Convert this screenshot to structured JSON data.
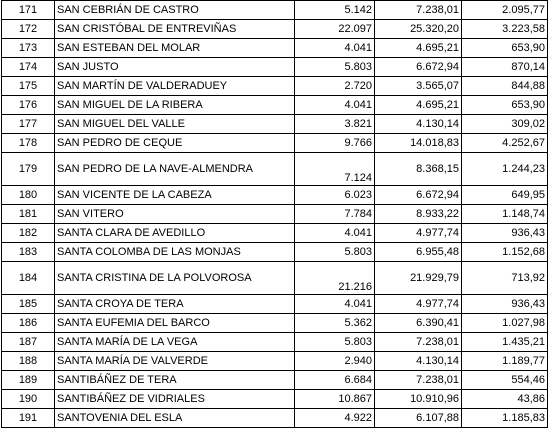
{
  "rows": [
    {
      "num": "171",
      "name": "SAN CEBRIÁN DE CASTRO",
      "c1": "5.142",
      "c2": "7.238,01",
      "c3": "2.095,77"
    },
    {
      "num": "172",
      "name": "SAN CRISTÓBAL DE ENTREVIÑAS",
      "c1": "22.097",
      "c2": "25.320,20",
      "c3": "3.223,58"
    },
    {
      "num": "173",
      "name": "SAN ESTEBAN DEL MOLAR",
      "c1": "4.041",
      "c2": "4.695,21",
      "c3": "653,90"
    },
    {
      "num": "174",
      "name": "SAN JUSTO",
      "c1": "5.803",
      "c2": "6.672,94",
      "c3": "870,14"
    },
    {
      "num": "175",
      "name": "SAN MARTÍN DE VALDERADUEY",
      "c1": "2.720",
      "c2": "3.565,07",
      "c3": "844,88"
    },
    {
      "num": "176",
      "name": "SAN MIGUEL DE LA RIBERA",
      "c1": "4.041",
      "c2": "4.695,21",
      "c3": "653,90"
    },
    {
      "num": "177",
      "name": "SAN MIGUEL DEL VALLE",
      "c1": "3.821",
      "c2": "4.130,14",
      "c3": "309,02"
    },
    {
      "num": "178",
      "name": "SAN PEDRO DE CEQUE",
      "c1": "9.766",
      "c2": "14.018,83",
      "c3": "4.252,67"
    },
    {
      "num": "179",
      "name": "SAN PEDRO DE LA NAVE-ALMENDRA",
      "c1": "7.124",
      "c2": "8.368,15",
      "c3": "1.244,23"
    },
    {
      "num": "180",
      "name": "SAN VICENTE DE LA CABEZA",
      "c1": "6.023",
      "c2": "6.672,94",
      "c3": "649,95"
    },
    {
      "num": "181",
      "name": "SAN VITERO",
      "c1": "7.784",
      "c2": "8.933,22",
      "c3": "1.148,74"
    },
    {
      "num": "182",
      "name": "SANTA CLARA DE AVEDILLO",
      "c1": "4.041",
      "c2": "4.977,74",
      "c3": "936,43"
    },
    {
      "num": "183",
      "name": "SANTA COLOMBA DE LAS MONJAS",
      "c1": "5.803",
      "c2": "6.955,48",
      "c3": "1.152,68"
    },
    {
      "num": "184",
      "name": "SANTA CRISTINA DE LA POLVOROSA",
      "c1": "21.216",
      "c2": "21.929,79",
      "c3": "713,92"
    },
    {
      "num": "185",
      "name": "SANTA CROYA DE TERA",
      "c1": "4.041",
      "c2": "4.977,74",
      "c3": "936,43"
    },
    {
      "num": "186",
      "name": "SANTA EUFEMIA DEL BARCO",
      "c1": "5.362",
      "c2": "6.390,41",
      "c3": "1.027,98"
    },
    {
      "num": "187",
      "name": "SANTA MARÍA DE LA VEGA",
      "c1": "5.803",
      "c2": "7.238,01",
      "c3": "1.435,21"
    },
    {
      "num": "188",
      "name": "SANTA MARÍA DE VALVERDE",
      "c1": "2.940",
      "c2": "4.130,14",
      "c3": "1.189,77"
    },
    {
      "num": "189",
      "name": "SANTIBÁÑEZ DE TERA",
      "c1": "6.684",
      "c2": "7.238,01",
      "c3": "554,46"
    },
    {
      "num": "190",
      "name": "SANTIBÁÑEZ DE VIDRIALES",
      "c1": "10.867",
      "c2": "10.910,96",
      "c3": "43,86"
    },
    {
      "num": "191",
      "name": "SANTOVENIA DEL ESLA",
      "c1": "4.922",
      "c2": "6.107,88",
      "c3": "1.185,83"
    }
  ]
}
